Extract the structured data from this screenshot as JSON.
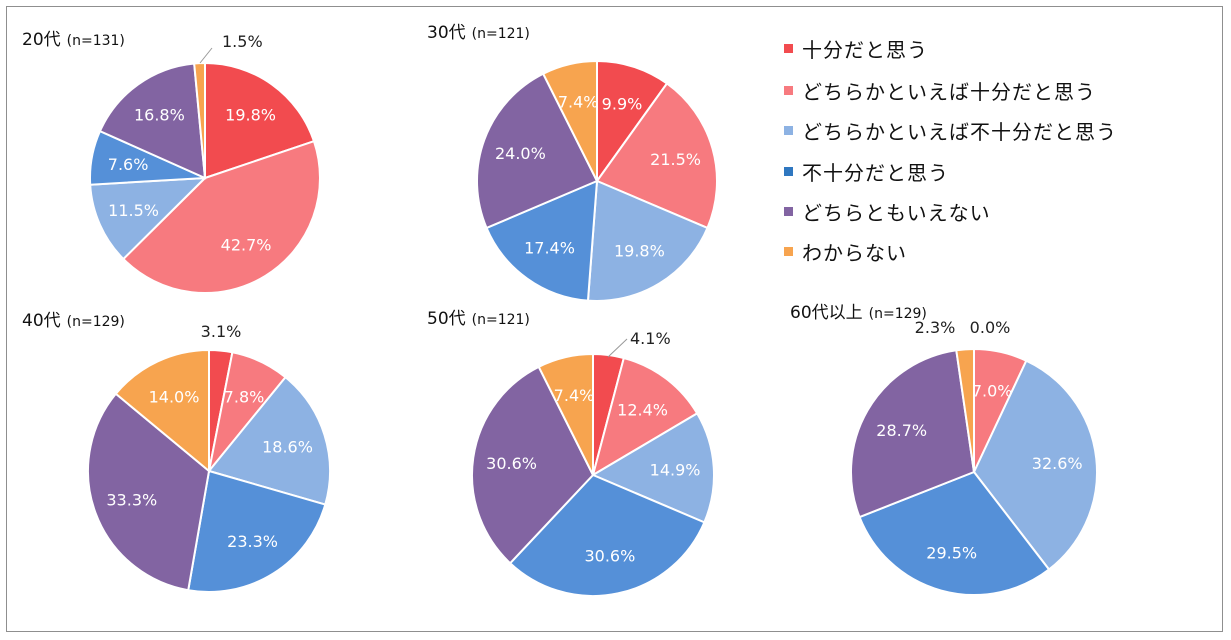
{
  "colors": {
    "十分だと思う": "#f24b4f",
    "どちらかといえば十分だと思う": "#f77a7f",
    "どちらかといえば不十分だと思う": "#8db2e3",
    "不十分だと思う": "#5590d8",
    "どちらともいえない": "#8264a2",
    "わからない": "#f7a44f"
  },
  "chart_data": [
    {
      "type": "pie",
      "title": "20代",
      "n_label": "(n=131)",
      "categories": [
        "十分だと思う",
        "どちらかといえば十分だと思う",
        "どちらかといえば不十分だと思う",
        "不十分だと思う",
        "どちらともいえない",
        "わからない"
      ],
      "values": [
        19.8,
        42.7,
        11.5,
        7.6,
        16.8,
        1.5
      ],
      "labels": [
        "19.8%",
        "42.7%",
        "11.5%",
        "7.6%",
        "16.8%",
        "1.5%"
      ]
    },
    {
      "type": "pie",
      "title": "30代",
      "n_label": "(n=121)",
      "categories": [
        "十分だと思う",
        "どちらかといえば十分だと思う",
        "どちらかといえば不十分だと思う",
        "不十分だと思う",
        "どちらともいえない",
        "わからない"
      ],
      "values": [
        9.9,
        21.5,
        19.8,
        17.4,
        24.0,
        7.4
      ],
      "labels": [
        "9.9%",
        "21.5%",
        "19.8%",
        "17.4%",
        "24.0%",
        "7.4%"
      ]
    },
    {
      "type": "pie",
      "title": "40代",
      "n_label": "(n=129)",
      "categories": [
        "十分だと思う",
        "どちらかといえば十分だと思う",
        "どちらかといえば不十分だと思う",
        "不十分だと思う",
        "どちらともいえない",
        "わからない"
      ],
      "values": [
        3.1,
        7.8,
        18.6,
        23.3,
        33.3,
        14.0
      ],
      "labels": [
        "3.1%",
        "7.8%",
        "18.6%",
        "23.3%",
        "33.3%",
        "14.0%"
      ]
    },
    {
      "type": "pie",
      "title": "50代",
      "n_label": "(n=121)",
      "categories": [
        "十分だと思う",
        "どちらかといえば十分だと思う",
        "どちらかといえば不十分だと思う",
        "不十分だと思う",
        "どちらともいえない",
        "わからない"
      ],
      "values": [
        4.1,
        12.4,
        14.9,
        30.6,
        30.6,
        7.4
      ],
      "labels": [
        "4.1%",
        "12.4%",
        "14.9%",
        "30.6%",
        "30.6%",
        "7.4%"
      ]
    },
    {
      "type": "pie",
      "title": "60代以上",
      "n_label": "(n=129)",
      "categories": [
        "十分だと思う",
        "どちらかといえば十分だと思う",
        "どちらかといえば不十分だと思う",
        "不十分だと思う",
        "どちらともいえない",
        "わからない"
      ],
      "values": [
        0.0,
        7.0,
        32.6,
        29.5,
        28.7,
        2.3
      ],
      "labels": [
        "0.0%",
        "7.0%",
        "32.6%",
        "29.5%",
        "28.7%",
        "2.3%"
      ]
    }
  ],
  "legend": [
    "十分だと思う",
    "どちらかといえば十分だと思う",
    "どちらかといえば不十分だと思う",
    "不十分だと思う",
    "どちらともいえない",
    "わからない"
  ]
}
